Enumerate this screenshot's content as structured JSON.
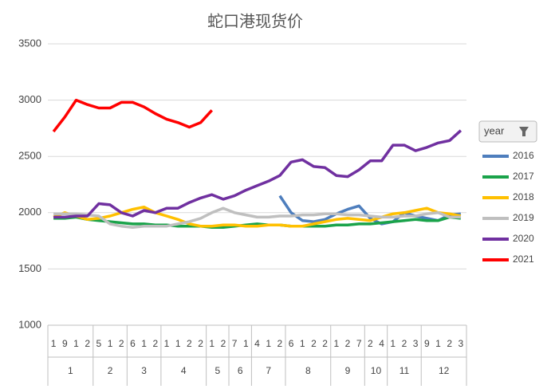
{
  "chart_data": {
    "type": "line",
    "title": "蛇口港现货价",
    "groups": [
      {
        "label": "1",
        "categories": [
          "1",
          "9",
          "1",
          "2"
        ]
      },
      {
        "label": "2",
        "categories": [
          "5",
          "1",
          "2"
        ]
      },
      {
        "label": "3",
        "categories": [
          "6",
          "1",
          "2"
        ]
      },
      {
        "label": "4",
        "categories": [
          "1",
          "1",
          "2",
          "2"
        ]
      },
      {
        "label": "5",
        "categories": [
          "1",
          "2"
        ]
      },
      {
        "label": "6",
        "categories": [
          "7",
          "1"
        ]
      },
      {
        "label": "7",
        "categories": [
          "4",
          "1",
          "2"
        ]
      },
      {
        "label": "8",
        "categories": [
          "6",
          "1",
          "2",
          "2"
        ]
      },
      {
        "label": "9",
        "categories": [
          "1",
          "2",
          "7"
        ]
      },
      {
        "label": "10",
        "categories": [
          "2",
          "4"
        ]
      },
      {
        "label": "11",
        "categories": [
          "1",
          "2",
          "3"
        ]
      },
      {
        "label": "12",
        "categories": [
          "9",
          "1",
          "2",
          "3"
        ]
      }
    ],
    "legend_title": "year",
    "series": [
      {
        "name": "2016",
        "color": "#4e7ebd",
        "values": [
          null,
          null,
          null,
          null,
          null,
          null,
          null,
          null,
          null,
          null,
          null,
          null,
          null,
          null,
          null,
          null,
          null,
          null,
          null,
          null,
          2150,
          2000,
          1930,
          1920,
          1940,
          1990,
          2030,
          2060,
          1950,
          1900,
          1920,
          2000,
          1970,
          1950,
          1930,
          1980,
          1990
        ]
      },
      {
        "name": "2017",
        "color": "#1aa34a",
        "values": [
          1950,
          1950,
          1960,
          1940,
          1930,
          1920,
          1910,
          1900,
          1900,
          1890,
          1890,
          1880,
          1880,
          1880,
          1870,
          1870,
          1880,
          1890,
          1900,
          1890,
          1890,
          1880,
          1880,
          1880,
          1880,
          1890,
          1890,
          1900,
          1900,
          1910,
          1920,
          1930,
          1940,
          1930,
          1930,
          1960,
          1950
        ]
      },
      {
        "name": "2018",
        "color": "#ffc000",
        "values": [
          1960,
          2000,
          1970,
          1940,
          1950,
          1970,
          2000,
          2030,
          2050,
          2000,
          1970,
          1940,
          1900,
          1880,
          1880,
          1890,
          1890,
          1880,
          1880,
          1890,
          1890,
          1880,
          1880,
          1900,
          1920,
          1940,
          1950,
          1940,
          1930,
          1960,
          1990,
          2000,
          2020,
          2040,
          2000,
          1990,
          1970
        ]
      },
      {
        "name": "2019",
        "color": "#bfbfbf",
        "values": [
          1990,
          1990,
          1990,
          1980,
          1970,
          1900,
          1880,
          1870,
          1880,
          1880,
          1880,
          1900,
          1920,
          1950,
          2000,
          2040,
          2000,
          1980,
          1960,
          1960,
          1970,
          1970,
          1980,
          1980,
          1990,
          1990,
          1980,
          1980,
          1970,
          1960,
          1960,
          1970,
          1970,
          1990,
          2000,
          1960,
          1960
        ]
      },
      {
        "name": "2020",
        "color": "#7030a0",
        "values": [
          1960,
          1960,
          1970,
          1970,
          2080,
          2070,
          2000,
          1970,
          2020,
          2000,
          2040,
          2040,
          2090,
          2130,
          2160,
          2120,
          2150,
          2200,
          2240,
          2280,
          2330,
          2450,
          2470,
          2410,
          2400,
          2330,
          2320,
          2380,
          2460,
          2460,
          2600,
          2600,
          2550,
          2580,
          2620,
          2640,
          2730
        ]
      },
      {
        "name": "2021",
        "color": "#ff0000",
        "values": [
          2720,
          2850,
          3000,
          2960,
          2930,
          2930,
          2980,
          2980,
          2940,
          2880,
          2830,
          2800,
          2760,
          2800,
          2910,
          null,
          null,
          null,
          null,
          null,
          null,
          null,
          null,
          null,
          null,
          null,
          null,
          null,
          null,
          null,
          null,
          null,
          null,
          null,
          null,
          null,
          null
        ]
      }
    ],
    "ylim": [
      1000,
      3500
    ],
    "yticks": [
      1000,
      1500,
      2000,
      2500,
      3000,
      3500
    ],
    "grid": true
  }
}
